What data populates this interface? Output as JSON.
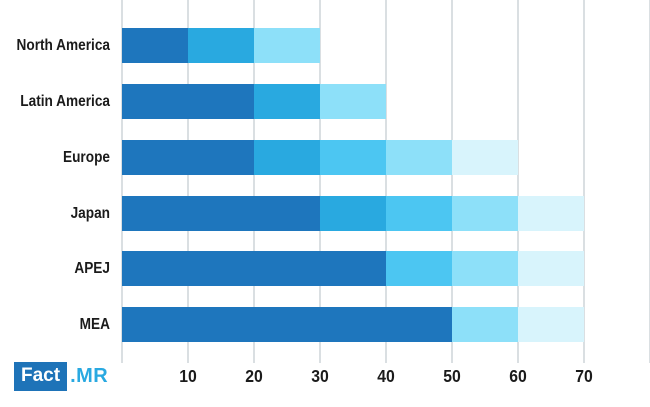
{
  "chart_data": {
    "type": "bar",
    "orientation": "horizontal",
    "title": "",
    "xlabel": "",
    "ylabel": "",
    "xlim": [
      0,
      80
    ],
    "grid": true,
    "gridline_color": "#dadfe2",
    "x_ticks": [
      10,
      20,
      30,
      40,
      50,
      60,
      70
    ],
    "categories": [
      "North America",
      "Latin America",
      "Europe",
      "Japan",
      "APEJ",
      "MEA"
    ],
    "totals": [
      30,
      40,
      60,
      70,
      70,
      70
    ],
    "segment_palette": {
      "dark_blue": "#1e76bd",
      "medium_blue": "#29a9e0",
      "cyan": "#4cc6f2",
      "light_sky": "#8de0f9",
      "pale_cyan": "#d8f4fc"
    },
    "rows": [
      {
        "category": "North America",
        "total": 30,
        "segments": [
          {
            "value": 10,
            "color": "#1e76bd"
          },
          {
            "value": 10,
            "color": "#29a9e0"
          },
          {
            "value": 10,
            "color": "#8de0f9"
          }
        ]
      },
      {
        "category": "Latin America",
        "total": 40,
        "segments": [
          {
            "value": 20,
            "color": "#1e76bd"
          },
          {
            "value": 10,
            "color": "#29a9e0"
          },
          {
            "value": 10,
            "color": "#8de0f9"
          }
        ]
      },
      {
        "category": "Europe",
        "total": 60,
        "segments": [
          {
            "value": 20,
            "color": "#1e76bd"
          },
          {
            "value": 10,
            "color": "#29a9e0"
          },
          {
            "value": 10,
            "color": "#4cc6f2"
          },
          {
            "value": 10,
            "color": "#8de0f9"
          },
          {
            "value": 10,
            "color": "#d8f4fc"
          }
        ]
      },
      {
        "category": "Japan",
        "total": 70,
        "segments": [
          {
            "value": 30,
            "color": "#1e76bd"
          },
          {
            "value": 10,
            "color": "#29a9e0"
          },
          {
            "value": 10,
            "color": "#4cc6f2"
          },
          {
            "value": 10,
            "color": "#8de0f9"
          },
          {
            "value": 10,
            "color": "#d8f4fc"
          }
        ]
      },
      {
        "category": "APEJ",
        "total": 70,
        "segments": [
          {
            "value": 40,
            "color": "#1e76bd"
          },
          {
            "value": 10,
            "color": "#4cc6f2"
          },
          {
            "value": 10,
            "color": "#8de0f9"
          },
          {
            "value": 10,
            "color": "#d8f4fc"
          }
        ]
      },
      {
        "category": "MEA",
        "total": 70,
        "segments": [
          {
            "value": 50,
            "color": "#1e76bd"
          },
          {
            "value": 10,
            "color": "#8de0f9"
          },
          {
            "value": 10,
            "color": "#d8f4fc"
          }
        ]
      }
    ]
  },
  "logo": {
    "box_text": "Fact",
    "suffix_text": ".MR",
    "box_color": "#1e73b8",
    "box_text_color": "#ffffff",
    "suffix_color": "#29a9e1"
  }
}
